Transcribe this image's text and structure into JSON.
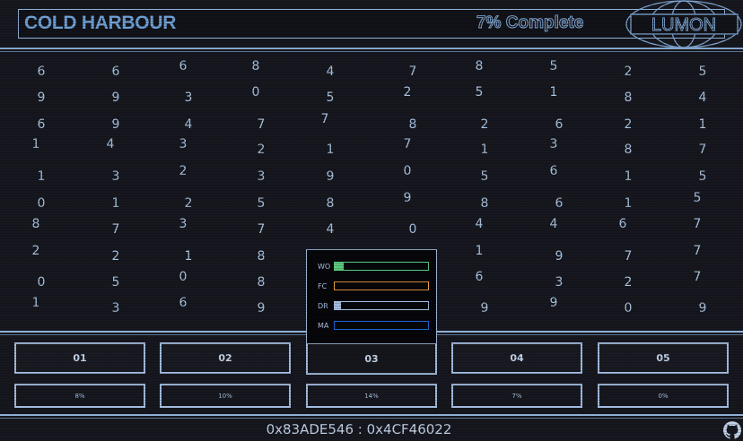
{
  "header": {
    "title": "COLD HARBOUR",
    "progress_text": "7% Complete",
    "logo_text": "LUMON"
  },
  "grid": [
    [
      6,
      6,
      6,
      8,
      4,
      7,
      8,
      5,
      2,
      5
    ],
    [
      9,
      9,
      3,
      0,
      5,
      2,
      5,
      1,
      8,
      4
    ],
    [
      6,
      9,
      4,
      7,
      7,
      8,
      2,
      6,
      2,
      1
    ],
    [
      1,
      4,
      3,
      2,
      1,
      7,
      1,
      3,
      8,
      7
    ],
    [
      1,
      3,
      2,
      3,
      9,
      0,
      5,
      6,
      1,
      5
    ],
    [
      0,
      1,
      2,
      5,
      8,
      9,
      8,
      6,
      1,
      5
    ],
    [
      8,
      7,
      3,
      7,
      4,
      0,
      4,
      4,
      6,
      7
    ],
    [
      2,
      2,
      1,
      8,
      null,
      null,
      1,
      9,
      7,
      7
    ],
    [
      0,
      5,
      0,
      8,
      null,
      null,
      6,
      3,
      2,
      7
    ],
    [
      1,
      3,
      6,
      9,
      null,
      null,
      9,
      9,
      0,
      9
    ]
  ],
  "bin_detail": {
    "bin": "03",
    "metrics": [
      {
        "label": "WO",
        "color": "#5cc97c",
        "fill": 0.1
      },
      {
        "label": "FC",
        "color": "#f0a443",
        "fill": 0
      },
      {
        "label": "DR",
        "color": "#a3bde0",
        "fill": 0.07
      },
      {
        "label": "MA",
        "color": "#1d63d6",
        "fill": 0
      }
    ]
  },
  "bins": [
    {
      "label": "01",
      "progress": "8%"
    },
    {
      "label": "02",
      "progress": "10%"
    },
    {
      "label": "03",
      "progress": "14%"
    },
    {
      "label": "04",
      "progress": "7%"
    },
    {
      "label": "05",
      "progress": "0%"
    }
  ],
  "footer": {
    "coordinates": "0x83ADE546 : 0x4CF46022",
    "github_icon": "github-icon"
  }
}
